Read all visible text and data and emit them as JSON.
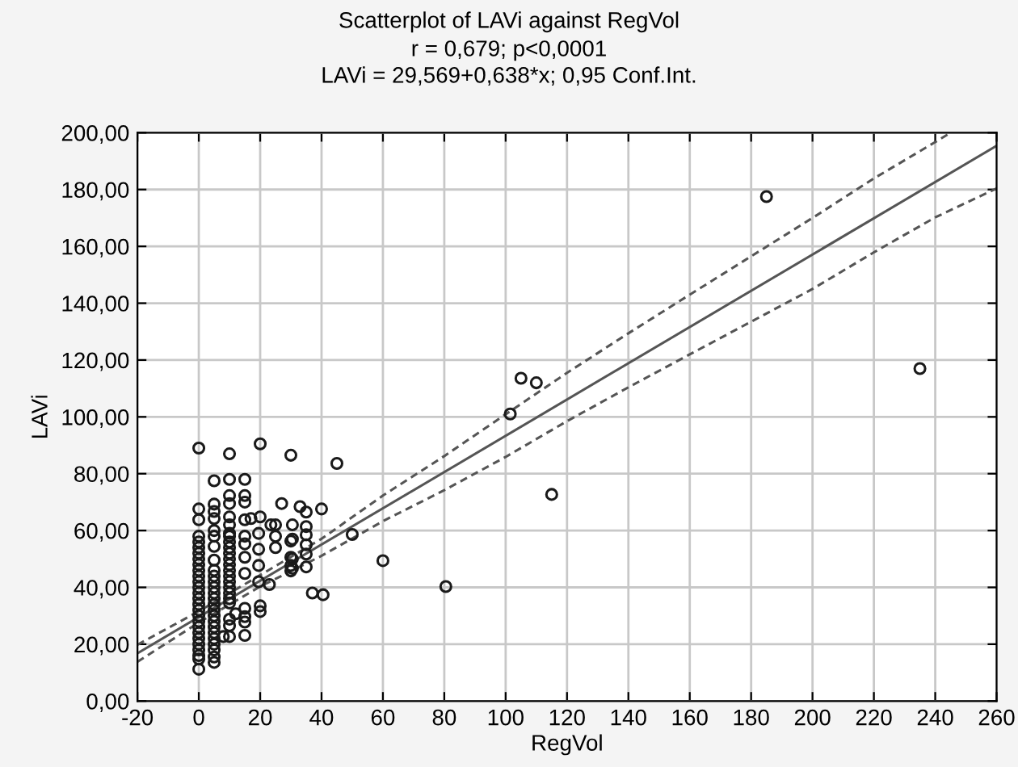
{
  "chart_data": {
    "type": "scatter",
    "title": "Scatterplot of LAVi against RegVol",
    "subtitle": "r = 0,679; p<0,0001\nLAVi = 29,569+0,638*x; 0,95 Conf.Int.",
    "xlabel": "RegVol",
    "ylabel": "LAVi",
    "xlim": [
      -20,
      260
    ],
    "ylim": [
      0,
      200
    ],
    "xticks": [
      -20,
      0,
      20,
      40,
      60,
      80,
      100,
      120,
      140,
      160,
      180,
      200,
      220,
      240,
      260
    ],
    "yticks": [
      {
        "value": 0,
        "label": "0,00"
      },
      {
        "value": 20,
        "label": "20,00"
      },
      {
        "value": 40,
        "label": "40,00"
      },
      {
        "value": 60,
        "label": "60,00"
      },
      {
        "value": 80,
        "label": "80,00"
      },
      {
        "value": 100,
        "label": "100,00"
      },
      {
        "value": 120,
        "label": "120,00"
      },
      {
        "value": 140,
        "label": "140,00"
      },
      {
        "value": 160,
        "label": "160,00"
      },
      {
        "value": 180,
        "label": "180,00"
      },
      {
        "value": 200,
        "label": "200,00"
      }
    ],
    "grid": true,
    "marker": "circle",
    "legend": false,
    "series": [
      {
        "color": "#1a1a1a",
        "x": [
          0,
          0,
          0,
          0,
          0,
          0,
          0,
          0,
          0,
          0,
          0,
          0,
          0,
          0,
          0,
          0,
          0,
          0,
          0,
          0,
          0,
          0,
          0,
          0,
          0,
          0,
          0,
          5,
          5,
          5,
          5,
          5,
          5,
          5,
          5,
          5,
          5,
          5,
          5,
          5,
          5,
          5,
          5,
          5,
          5,
          5,
          5,
          5,
          5,
          5,
          5,
          5,
          10,
          10,
          10,
          10,
          10,
          10,
          10,
          10,
          10,
          10,
          10,
          10,
          10,
          10,
          10,
          10,
          10,
          10,
          10,
          10,
          10,
          10,
          10,
          15,
          15,
          15,
          15,
          15,
          15,
          15,
          15,
          15,
          15,
          15,
          15,
          20,
          30,
          45,
          17,
          20,
          23.5,
          25,
          27,
          33,
          35,
          40,
          50,
          60,
          37,
          40.5,
          19.5,
          19.5,
          19.5,
          19.5,
          25,
          25,
          30,
          30,
          30,
          30,
          35,
          35,
          35,
          35,
          35,
          23,
          20,
          20,
          8,
          12,
          105,
          110,
          101.5,
          115,
          80.5,
          185,
          235,
          30.5,
          30.5,
          30.5,
          30.5
        ],
        "values": [
          89,
          67.6,
          63.8,
          58,
          56,
          54,
          52,
          50,
          48,
          46,
          44,
          42,
          40,
          38,
          36,
          34,
          32,
          30,
          28,
          26,
          24,
          22,
          20,
          18,
          16,
          14.8,
          11.2,
          77.5,
          69.3,
          66.7,
          64.2,
          60,
          58,
          54.4,
          49.6,
          46,
          44,
          42,
          40,
          38,
          36,
          34,
          32,
          30,
          28,
          26,
          24,
          22,
          20,
          18,
          15.5,
          13.6,
          87,
          78,
          72.3,
          69.5,
          64.8,
          62,
          59,
          58,
          56,
          54,
          52,
          50,
          48,
          46,
          44,
          42,
          40,
          38,
          36,
          34.5,
          28.8,
          26.5,
          22.7,
          78,
          72.3,
          70,
          63.8,
          58,
          55.3,
          50.6,
          44.9,
          32.6,
          29.7,
          27.8,
          23.1,
          90.5,
          86.5,
          83.6,
          64.2,
          64.8,
          62,
          62,
          69.5,
          68.4,
          66.5,
          67.6,
          58.6,
          49.4,
          38,
          37.4,
          59,
          53.4,
          47.7,
          42,
          58,
          54,
          56.3,
          50.6,
          47.7,
          45.8,
          61.4,
          58.5,
          51.7,
          47.2,
          55,
          41,
          33.5,
          31.5,
          22.7,
          30.7,
          113.6,
          112,
          101,
          72.7,
          40.3,
          177.5,
          117,
          62,
          57,
          50,
          46.7
        ]
      },
      {
        "type": "line",
        "color": "#555555",
        "line_style": "solid",
        "marker": "none",
        "x": [
          -20,
          260
        ],
        "values": [
          16.8,
          195.4
        ]
      },
      {
        "type": "line",
        "color": "#555555",
        "line_style": "dashed",
        "marker": "none",
        "x": [
          -20,
          0,
          20,
          40,
          60,
          80,
          100,
          120,
          140,
          160,
          180,
          200,
          220,
          240,
          260
        ],
        "values": [
          13.8,
          27.6,
          40.3,
          51.1,
          63.3,
          74.2,
          85.9,
          98.5,
          110.4,
          122,
          133.5,
          145,
          157.9,
          170.2,
          180.4
        ]
      },
      {
        "type": "line",
        "color": "#555555",
        "line_style": "dashed",
        "marker": "none",
        "x": [
          -20,
          0,
          20,
          40,
          60,
          80,
          100,
          120,
          140,
          160,
          180,
          200,
          220,
          240,
          245
        ],
        "values": [
          19.8,
          31.6,
          44.3,
          57.1,
          72.3,
          86.2,
          100.9,
          115.5,
          129.4,
          143,
          156.5,
          170,
          183.9,
          196.7,
          200
        ]
      }
    ]
  }
}
